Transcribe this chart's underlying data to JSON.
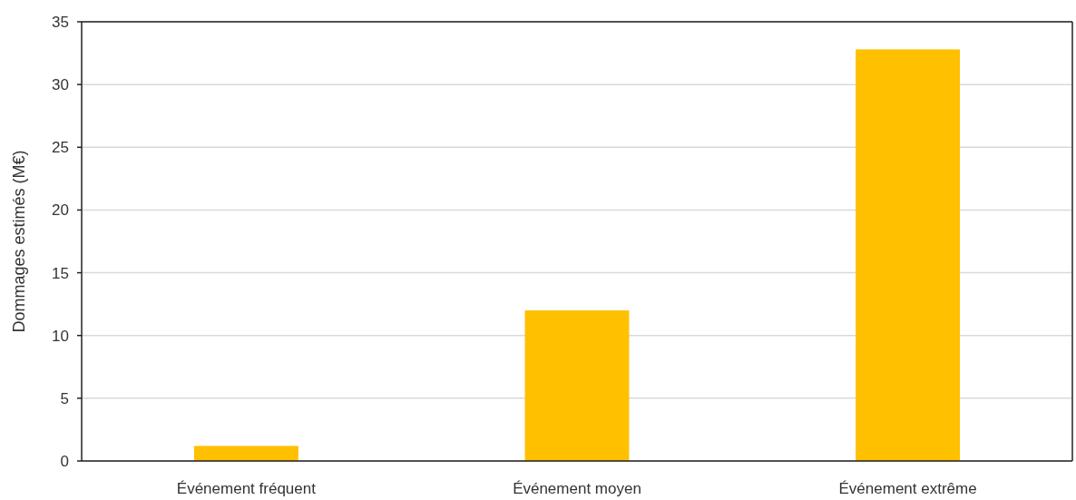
{
  "chart_data": {
    "type": "bar",
    "ylabel": "Dommages estimés (M€)",
    "categories": [
      "Événement fréquent",
      "Événement moyen",
      "Événement extrême"
    ],
    "values": [
      1.2,
      12,
      32.8
    ],
    "color": "#ffc000",
    "ylim": [
      0,
      35
    ],
    "yticks": [
      0,
      5,
      10,
      15,
      20,
      25,
      30,
      35
    ],
    "grid": "y"
  }
}
